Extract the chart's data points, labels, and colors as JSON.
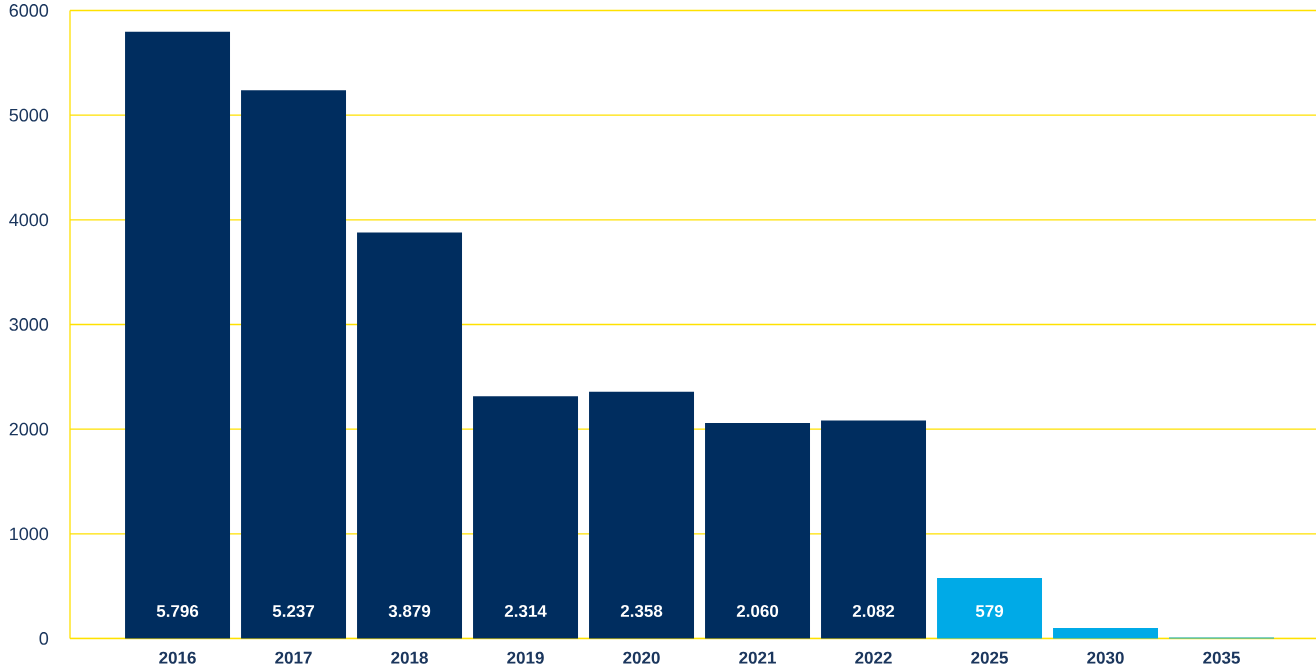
{
  "chart_data": {
    "type": "bar",
    "categories": [
      "2016",
      "2017",
      "2018",
      "2019",
      "2020",
      "2021",
      "2022",
      "2025",
      "2030",
      "2035"
    ],
    "values": [
      5796,
      5237,
      3879,
      2314,
      2358,
      2060,
      2082,
      579,
      100,
      10
    ],
    "colors": [
      "#002d5f",
      "#002d5f",
      "#002d5f",
      "#002d5f",
      "#002d5f",
      "#002d5f",
      "#002d5f",
      "#00aae7",
      "#00aae7",
      "#00aae7"
    ],
    "value_labels": [
      "5.796",
      "5.237",
      "3.879",
      "2.314",
      "2.358",
      "2.060",
      "2.082",
      "579",
      null,
      null
    ],
    "ylim": [
      0,
      6000
    ],
    "yticks": [
      0,
      1000,
      2000,
      3000,
      4000,
      5000,
      6000
    ],
    "grid": "y"
  }
}
